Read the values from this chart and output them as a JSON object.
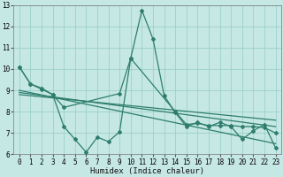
{
  "xlabel": "Humidex (Indice chaleur)",
  "bg_color": "#c5e8e4",
  "grid_color": "#9dcfcc",
  "line_color": "#2e7d6e",
  "xlim": [
    -0.5,
    23.5
  ],
  "ylim": [
    6,
    13
  ],
  "xtick_vals": [
    0,
    1,
    2,
    3,
    4,
    5,
    6,
    7,
    8,
    9,
    10,
    11,
    12,
    13,
    14,
    15,
    16,
    17,
    18,
    19,
    20,
    21,
    22,
    23
  ],
  "ytick_vals": [
    6,
    7,
    8,
    9,
    10,
    11,
    12,
    13
  ],
  "main_line_x": [
    0,
    1,
    2,
    3,
    4,
    5,
    6,
    7,
    8,
    9,
    10,
    11,
    12,
    13,
    14,
    15,
    16,
    17,
    18,
    19,
    20,
    21,
    22,
    23
  ],
  "main_line_y": [
    10.1,
    9.3,
    9.1,
    8.8,
    7.3,
    6.7,
    6.1,
    6.8,
    6.6,
    7.05,
    10.5,
    12.75,
    11.4,
    8.75,
    7.95,
    7.3,
    7.5,
    7.3,
    7.5,
    7.3,
    6.7,
    7.1,
    7.4,
    6.3
  ],
  "partial_line_x": [
    0,
    1,
    2,
    3,
    4,
    9,
    10,
    14,
    15,
    16,
    17,
    18,
    19,
    20,
    21,
    22,
    23
  ],
  "partial_line_y": [
    10.1,
    9.3,
    9.05,
    8.8,
    8.2,
    8.85,
    10.5,
    8.0,
    7.4,
    7.45,
    7.35,
    7.35,
    7.35,
    7.3,
    7.3,
    7.25,
    7.0
  ],
  "reg_lines": [
    {
      "x0": 0,
      "y0": 9.0,
      "x1": 23,
      "y1": 6.5
    },
    {
      "x0": 0,
      "y0": 8.8,
      "x1": 23,
      "y1": 7.6
    },
    {
      "x0": 0,
      "y0": 8.9,
      "x1": 23,
      "y1": 7.3
    }
  ]
}
